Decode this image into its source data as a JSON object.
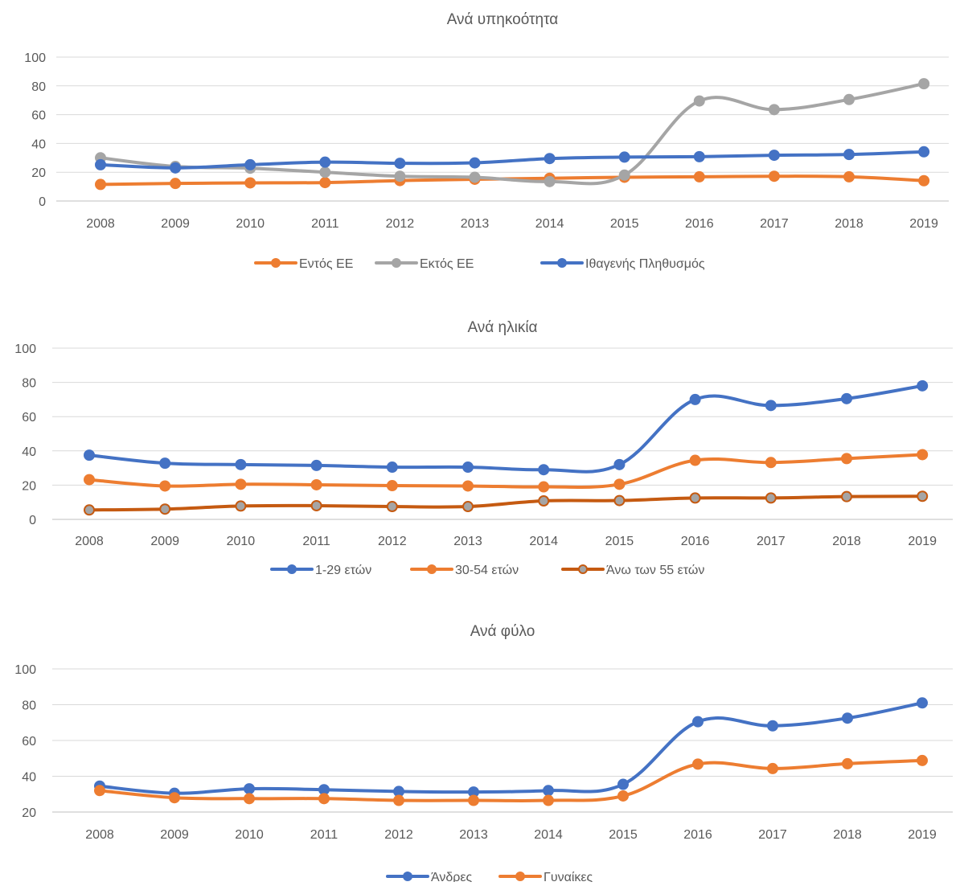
{
  "chart_data": [
    {
      "type": "line",
      "title": "Ανά υπηκοότητα",
      "categories": [
        "2008",
        "2009",
        "2010",
        "2011",
        "2012",
        "2013",
        "2014",
        "2015",
        "2016",
        "2017",
        "2018",
        "2019"
      ],
      "ylim": [
        0,
        100
      ],
      "yticks": [
        0,
        20,
        40,
        60,
        80,
        100
      ],
      "grid": true,
      "legend": "bottom",
      "series": [
        {
          "name": "Εντός ΕΕ",
          "color": "#ED7D31",
          "values": [
            11.5,
            12.2,
            12.6,
            12.8,
            14.2,
            15.1,
            15.8,
            16.5,
            16.8,
            17.2,
            16.8,
            14.1
          ]
        },
        {
          "name": "Εκτός ΕΕ",
          "color": "#A5A5A5",
          "values": [
            30.0,
            24.0,
            22.8,
            20.0,
            17.2,
            16.5,
            13.5,
            18.0,
            69.5,
            63.5,
            70.5,
            81.5
          ]
        },
        {
          "name": "Ιθαγενής Πληθυσμός",
          "color": "#4472C4",
          "values": [
            25.2,
            23.0,
            25.2,
            27.0,
            26.2,
            26.5,
            29.5,
            30.5,
            30.8,
            31.8,
            32.3,
            34.2
          ]
        }
      ]
    },
    {
      "type": "line",
      "title": "Ανά ηλικία",
      "categories": [
        "2008",
        "2009",
        "2010",
        "2011",
        "2012",
        "2013",
        "2014",
        "2015",
        "2016",
        "2017",
        "2018",
        "2019"
      ],
      "ylim": [
        0,
        100
      ],
      "yticks": [
        0,
        20,
        40,
        60,
        80,
        100
      ],
      "grid": true,
      "legend": "bottom",
      "series": [
        {
          "name": "1-29 ετών",
          "color": "#4472C4",
          "values": [
            37.5,
            32.8,
            32.0,
            31.5,
            30.5,
            30.5,
            29.0,
            32.0,
            70.0,
            66.5,
            70.5,
            78.0
          ]
        },
        {
          "name": "30-54 ετών",
          "color": "#ED7D31",
          "values": [
            23.2,
            19.5,
            20.5,
            20.2,
            19.7,
            19.5,
            19.0,
            20.5,
            34.5,
            33.2,
            35.5,
            37.8
          ]
        },
        {
          "name": "Άνω των 55 ετών",
          "color": "#C55A11",
          "values": [
            5.5,
            6.0,
            7.8,
            8.0,
            7.5,
            7.5,
            10.8,
            11.0,
            12.5,
            12.5,
            13.3,
            13.5
          ]
        }
      ]
    },
    {
      "type": "line",
      "title": "Ανά φύλο",
      "categories": [
        "2008",
        "2009",
        "2010",
        "2011",
        "2012",
        "2013",
        "2014",
        "2015",
        "2016",
        "2017",
        "2018",
        "2019"
      ],
      "ylim": [
        20,
        100
      ],
      "yticks": [
        20,
        40,
        60,
        80,
        100
      ],
      "grid": true,
      "legend": "bottom",
      "series": [
        {
          "name": "Άνδρες",
          "color": "#4472C4",
          "values": [
            34.5,
            30.5,
            33.0,
            32.5,
            31.5,
            31.2,
            32.0,
            35.5,
            70.5,
            68.2,
            72.5,
            81.0
          ]
        },
        {
          "name": "Γυναίκες",
          "color": "#ED7D31",
          "values": [
            32.0,
            28.0,
            27.5,
            27.5,
            26.5,
            26.5,
            26.5,
            29.0,
            46.8,
            44.3,
            47.0,
            48.8
          ]
        }
      ]
    }
  ]
}
